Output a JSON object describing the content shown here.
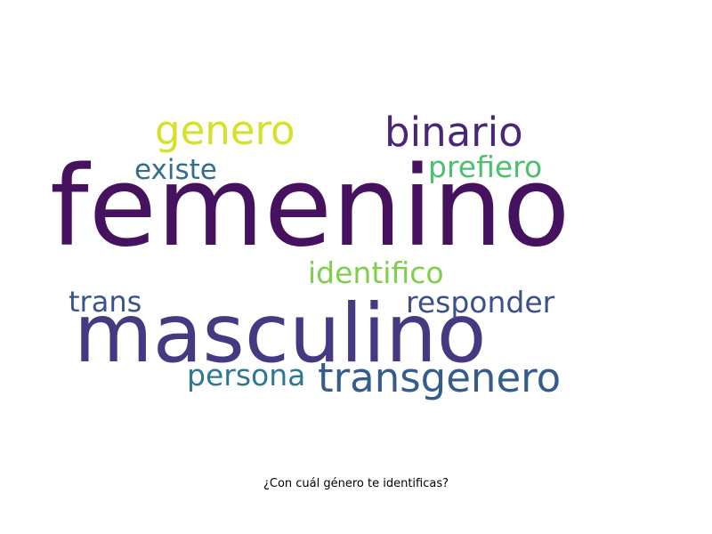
{
  "caption": "¿Con cuál género te identificas?",
  "words": [
    {
      "text": "femenino",
      "color": "#46125f"
    },
    {
      "text": "masculino",
      "color": "#453981"
    },
    {
      "text": "genero",
      "color": "#d7e12a"
    },
    {
      "text": "binario",
      "color": "#4a2676"
    },
    {
      "text": "existe",
      "color": "#356d8c"
    },
    {
      "text": "prefiero",
      "color": "#4bc06d"
    },
    {
      "text": "identifico",
      "color": "#7ecf4a"
    },
    {
      "text": "trans",
      "color": "#3b548d"
    },
    {
      "text": "responder",
      "color": "#3c5089"
    },
    {
      "text": "persona",
      "color": "#2f7891"
    },
    {
      "text": "transgenero",
      "color": "#365c8c"
    }
  ]
}
